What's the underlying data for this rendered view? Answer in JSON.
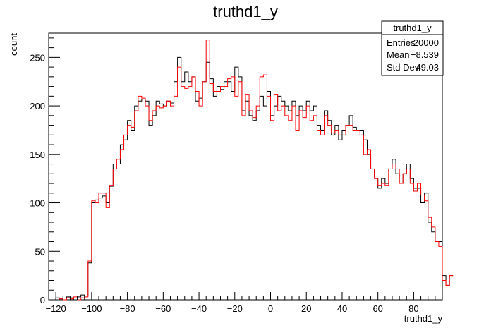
{
  "chart_data": {
    "type": "histogram",
    "title": "truthd1_y",
    "xlabel": "truthd1_y",
    "ylabel": "count",
    "xlim": [
      -124,
      96
    ],
    "ylim": [
      0,
      275
    ],
    "bin_width": 2,
    "x_start": -124,
    "x_ticks": [
      -120,
      -100,
      -80,
      -60,
      -40,
      -20,
      0,
      20,
      40,
      60,
      80
    ],
    "y_ticks": [
      0,
      50,
      100,
      150,
      200,
      250
    ],
    "grid": false,
    "legend": "none",
    "series": [
      {
        "color": "#000000",
        "values": [
          0,
          0,
          2,
          1,
          0,
          3,
          2,
          0,
          3,
          5,
          4,
          38,
          100,
          103,
          105,
          107,
          100,
          117,
          140,
          140,
          160,
          165,
          185,
          175,
          200,
          205,
          207,
          205,
          180,
          190,
          205,
          202,
          200,
          205,
          203,
          225,
          250,
          225,
          235,
          225,
          230,
          205,
          208,
          225,
          245,
          228,
          210,
          220,
          217,
          225,
          225,
          215,
          240,
          230,
          195,
          205,
          190,
          185,
          195,
          210,
          200,
          215,
          190,
          200,
          210,
          205,
          200,
          195,
          205,
          190,
          200,
          195,
          205,
          195,
          200,
          180,
          175,
          195,
          185,
          170,
          180,
          165,
          175,
          180,
          190,
          178,
          175,
          175,
          165,
          150,
          135,
          125,
          115,
          125,
          120,
          135,
          145,
          130,
          120,
          130,
          140,
          125,
          115,
          115,
          100,
          110,
          80,
          70,
          60,
          60,
          25,
          15,
          25
        ]
      },
      {
        "color": "#ff0000",
        "values": [
          0,
          0,
          0,
          1,
          0,
          2,
          1,
          3,
          0,
          2,
          3,
          40,
          102,
          100,
          110,
          110,
          95,
          118,
          135,
          145,
          155,
          170,
          180,
          178,
          195,
          210,
          208,
          200,
          185,
          195,
          200,
          198,
          200,
          205,
          200,
          210,
          240,
          220,
          218,
          220,
          230,
          215,
          200,
          225,
          268,
          223,
          215,
          215,
          220,
          220,
          228,
          230,
          210,
          225,
          190,
          212,
          195,
          188,
          200,
          230,
          232,
          210,
          185,
          212,
          195,
          200,
          190,
          185,
          200,
          175,
          195,
          188,
          200,
          185,
          190,
          175,
          170,
          190,
          180,
          172,
          175,
          170,
          170,
          180,
          180,
          175,
          175,
          170,
          150,
          155,
          135,
          125,
          118,
          120,
          118,
          135,
          140,
          135,
          120,
          130,
          135,
          120,
          112,
          120,
          108,
          102,
          85,
          75,
          60,
          55,
          20,
          15,
          25
        ]
      }
    ],
    "stats_box": {
      "title": "truthd1_y",
      "rows": [
        {
          "label": "Entries",
          "value": "20000"
        },
        {
          "label": "Mean",
          "value": "−8.539"
        },
        {
          "label": "Std Dev",
          "value": "49.03"
        }
      ]
    }
  }
}
